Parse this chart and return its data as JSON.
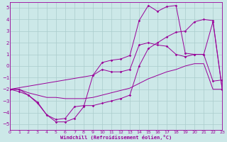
{
  "xlabel": "Windchill (Refroidissement éolien,°C)",
  "background_color": "#cce8e8",
  "grid_color": "#aacccc",
  "line_color": "#990099",
  "xlim": [
    0,
    23
  ],
  "ylim": [
    -5.5,
    5.5
  ],
  "yticks": [
    -5,
    -4,
    -3,
    -2,
    -1,
    0,
    1,
    2,
    3,
    4,
    5
  ],
  "xticks": [
    0,
    1,
    2,
    3,
    4,
    5,
    6,
    7,
    8,
    9,
    10,
    11,
    12,
    13,
    14,
    15,
    16,
    17,
    18,
    19,
    20,
    21,
    22,
    23
  ],
  "s1_x": [
    0,
    1,
    2,
    3,
    4,
    5,
    6,
    7,
    8,
    9,
    10,
    11,
    12,
    13,
    14,
    15,
    16,
    17,
    18,
    19,
    20,
    21,
    22,
    23
  ],
  "s1_y": [
    -2.0,
    -2.2,
    -2.5,
    -3.2,
    -4.2,
    -4.8,
    -4.8,
    -4.5,
    -3.5,
    -0.8,
    -0.3,
    -0.5,
    -0.5,
    -0.3,
    1.8,
    2.0,
    1.8,
    1.7,
    1.0,
    0.8,
    1.0,
    1.0,
    -1.3,
    -1.2
  ],
  "s2_x": [
    0,
    1,
    2,
    3,
    4,
    5,
    6,
    7,
    8,
    9,
    10,
    11,
    12,
    13,
    14,
    15,
    16,
    17,
    18,
    19,
    20,
    21,
    22,
    23
  ],
  "s2_y": [
    -2.0,
    -2.0,
    -2.3,
    -2.5,
    -2.7,
    -2.7,
    -2.8,
    -2.8,
    -2.8,
    -2.7,
    -2.5,
    -2.3,
    -2.1,
    -1.9,
    -1.5,
    -1.1,
    -0.8,
    -0.5,
    -0.3,
    0.0,
    0.2,
    0.2,
    -2.0,
    -2.0
  ],
  "s3_x": [
    0,
    9,
    10,
    11,
    12,
    13,
    14,
    15,
    16,
    17,
    18,
    19,
    20,
    21,
    22,
    23
  ],
  "s3_y": [
    -2.0,
    -0.8,
    0.3,
    0.5,
    0.6,
    0.9,
    3.9,
    5.2,
    4.7,
    5.1,
    5.2,
    1.1,
    1.0,
    1.0,
    3.8,
    -2.0
  ],
  "s4_x": [
    0,
    1,
    2,
    3,
    4,
    5,
    6,
    7,
    8,
    9,
    10,
    11,
    12,
    13,
    14,
    15,
    16,
    17,
    18,
    19,
    20,
    21,
    22,
    23
  ],
  "s4_y": [
    -2.0,
    -2.0,
    -2.5,
    -3.1,
    -4.2,
    -4.6,
    -4.5,
    -3.5,
    -3.4,
    -3.4,
    -3.2,
    -3.0,
    -2.8,
    -2.5,
    0.0,
    1.5,
    2.0,
    2.5,
    2.9,
    3.0,
    3.8,
    4.0,
    3.9,
    -2.0
  ]
}
